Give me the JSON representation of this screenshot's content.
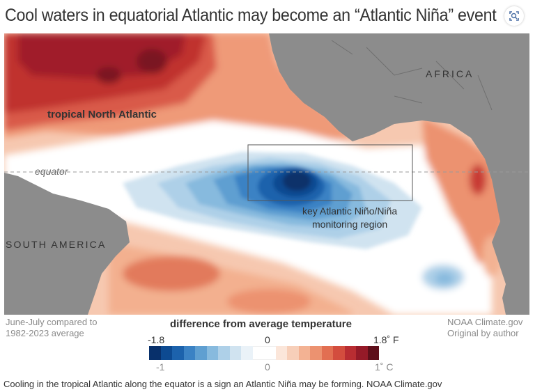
{
  "title": "Cool waters in equatorial Atlantic may become an “Atlantic Niña” event",
  "zoom_icon": "zoom-icon",
  "map": {
    "labels": {
      "africa": "AFRICA",
      "south_america": "SOUTH AMERICA",
      "tropical_north_atlantic": "tropical North Atlantic",
      "equator": "equator",
      "region_line1": "key Atlantic Niño/Niña",
      "region_line2": "monitoring region"
    }
  },
  "legend": {
    "title": "difference from average temperature",
    "f_ticks": [
      "-1.8",
      "0",
      "1.8˚ F"
    ],
    "c_ticks": [
      "-1",
      "0",
      "1˚ C"
    ],
    "colors": [
      "#08306b",
      "#0d4a91",
      "#1c62ac",
      "#3b82c4",
      "#5f9fd1",
      "#87bade",
      "#aed0e8",
      "#d0e3f0",
      "#eaf2f8",
      "#ffffff",
      "#ffffff",
      "#fbe6da",
      "#f7cfb9",
      "#f3b293",
      "#ec9270",
      "#e26f52",
      "#d34d3e",
      "#b92d32",
      "#951a28",
      "#5e0f1a"
    ]
  },
  "footer": {
    "left_line1": "June-July compared to",
    "left_line2": "1982-2023 average",
    "right_line1": "NOAA Climate.gov",
    "right_line2": "Original by author"
  },
  "caption": "Cooling in the tropical Atlantic along the equator is a sign an Atlantic Niña may be forming. NOAA Climate.gov"
}
